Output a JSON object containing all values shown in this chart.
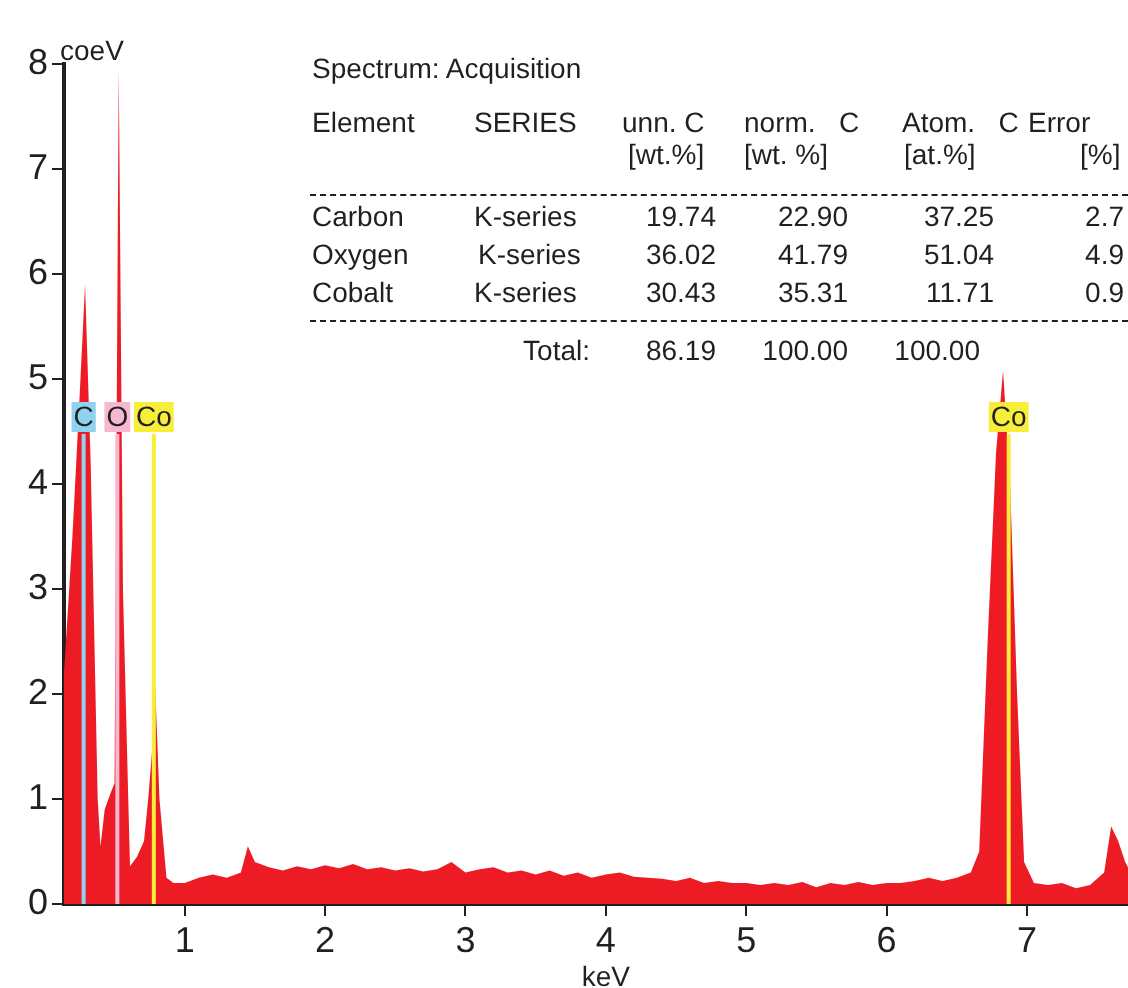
{
  "chart_data": {
    "type": "area",
    "xlabel": "keV",
    "ylabel": "coeV",
    "x": [
      0.14,
      0.2,
      0.25,
      0.29,
      0.33,
      0.38,
      0.4,
      0.43,
      0.47,
      0.5,
      0.53,
      0.56,
      0.61,
      0.66,
      0.71,
      0.74,
      0.77,
      0.79,
      0.82,
      0.87,
      0.92,
      1.0,
      1.1,
      1.2,
      1.3,
      1.4,
      1.45,
      1.5,
      1.6,
      1.7,
      1.8,
      1.9,
      2.0,
      2.1,
      2.2,
      2.3,
      2.4,
      2.5,
      2.6,
      2.7,
      2.8,
      2.9,
      3.0,
      3.1,
      3.2,
      3.3,
      3.4,
      3.5,
      3.6,
      3.7,
      3.8,
      3.9,
      4.0,
      4.1,
      4.2,
      4.3,
      4.4,
      4.5,
      4.6,
      4.7,
      4.8,
      4.9,
      5.0,
      5.1,
      5.2,
      5.3,
      5.4,
      5.5,
      5.6,
      5.7,
      5.8,
      5.9,
      6.0,
      6.1,
      6.2,
      6.3,
      6.4,
      6.5,
      6.6,
      6.66,
      6.72,
      6.78,
      6.83,
      6.88,
      6.93,
      6.98,
      7.05,
      7.15,
      7.25,
      7.35,
      7.45,
      7.55,
      7.6,
      7.65,
      7.7,
      7.72
    ],
    "series": [
      {
        "color": "#ed1c24",
        "values": [
          2.2,
          3.5,
          4.8,
          5.9,
          4.2,
          1.0,
          0.55,
          0.9,
          1.05,
          1.15,
          7.95,
          3.0,
          0.36,
          0.45,
          0.6,
          1.0,
          1.5,
          2.07,
          1.0,
          0.25,
          0.2,
          0.2,
          0.25,
          0.28,
          0.25,
          0.3,
          0.55,
          0.4,
          0.35,
          0.32,
          0.36,
          0.33,
          0.37,
          0.34,
          0.38,
          0.33,
          0.35,
          0.32,
          0.34,
          0.31,
          0.33,
          0.4,
          0.3,
          0.33,
          0.35,
          0.3,
          0.32,
          0.28,
          0.32,
          0.27,
          0.3,
          0.25,
          0.28,
          0.3,
          0.26,
          0.25,
          0.24,
          0.22,
          0.25,
          0.2,
          0.22,
          0.2,
          0.2,
          0.18,
          0.2,
          0.18,
          0.21,
          0.16,
          0.2,
          0.18,
          0.21,
          0.18,
          0.2,
          0.2,
          0.22,
          0.25,
          0.22,
          0.25,
          0.3,
          0.5,
          2.5,
          4.3,
          5.08,
          4.0,
          2.0,
          0.4,
          0.2,
          0.18,
          0.2,
          0.15,
          0.18,
          0.3,
          0.74,
          0.6,
          0.4,
          0.35
        ]
      }
    ],
    "xlim": [
      0.14,
      7.72
    ],
    "xticks": [
      1,
      2,
      3,
      4,
      5,
      6,
      7
    ],
    "ylim": [
      0,
      8
    ],
    "yticks": [
      0,
      1,
      2,
      3,
      4,
      5,
      6,
      7,
      8
    ],
    "grid": false,
    "legend": false,
    "marker": "none",
    "ref_lines": [
      {
        "axis": "x",
        "value": 0.28,
        "label": "C",
        "color": "#8fd3f0"
      },
      {
        "axis": "x",
        "value": 0.52,
        "label": "O",
        "color": "#f4b8d0"
      },
      {
        "axis": "x",
        "value": 0.78,
        "label": "Co",
        "color": "#f7ee3a"
      },
      {
        "axis": "x",
        "value": 6.87,
        "label": "Co",
        "color": "#f7ee3a"
      }
    ],
    "annotations": [
      "Spectrum: Acquisition",
      "Element",
      "SERIES",
      "unn. C",
      "norm.   C",
      "Atom.   C",
      "Error",
      "[wt.%]",
      "[wt. %]",
      "[at.%]",
      "[%]",
      "Carbon",
      "K-series",
      "19.74",
      "22.90",
      "37.25",
      "2.7",
      "Oxygen",
      "K-series",
      "36.02",
      "41.79",
      "51.04",
      "4.9",
      "Cobalt",
      "K-series",
      "30.43",
      "35.31",
      "11.71",
      "0.9",
      "Total:",
      "86.19",
      "100.00",
      "100.00"
    ]
  }
}
